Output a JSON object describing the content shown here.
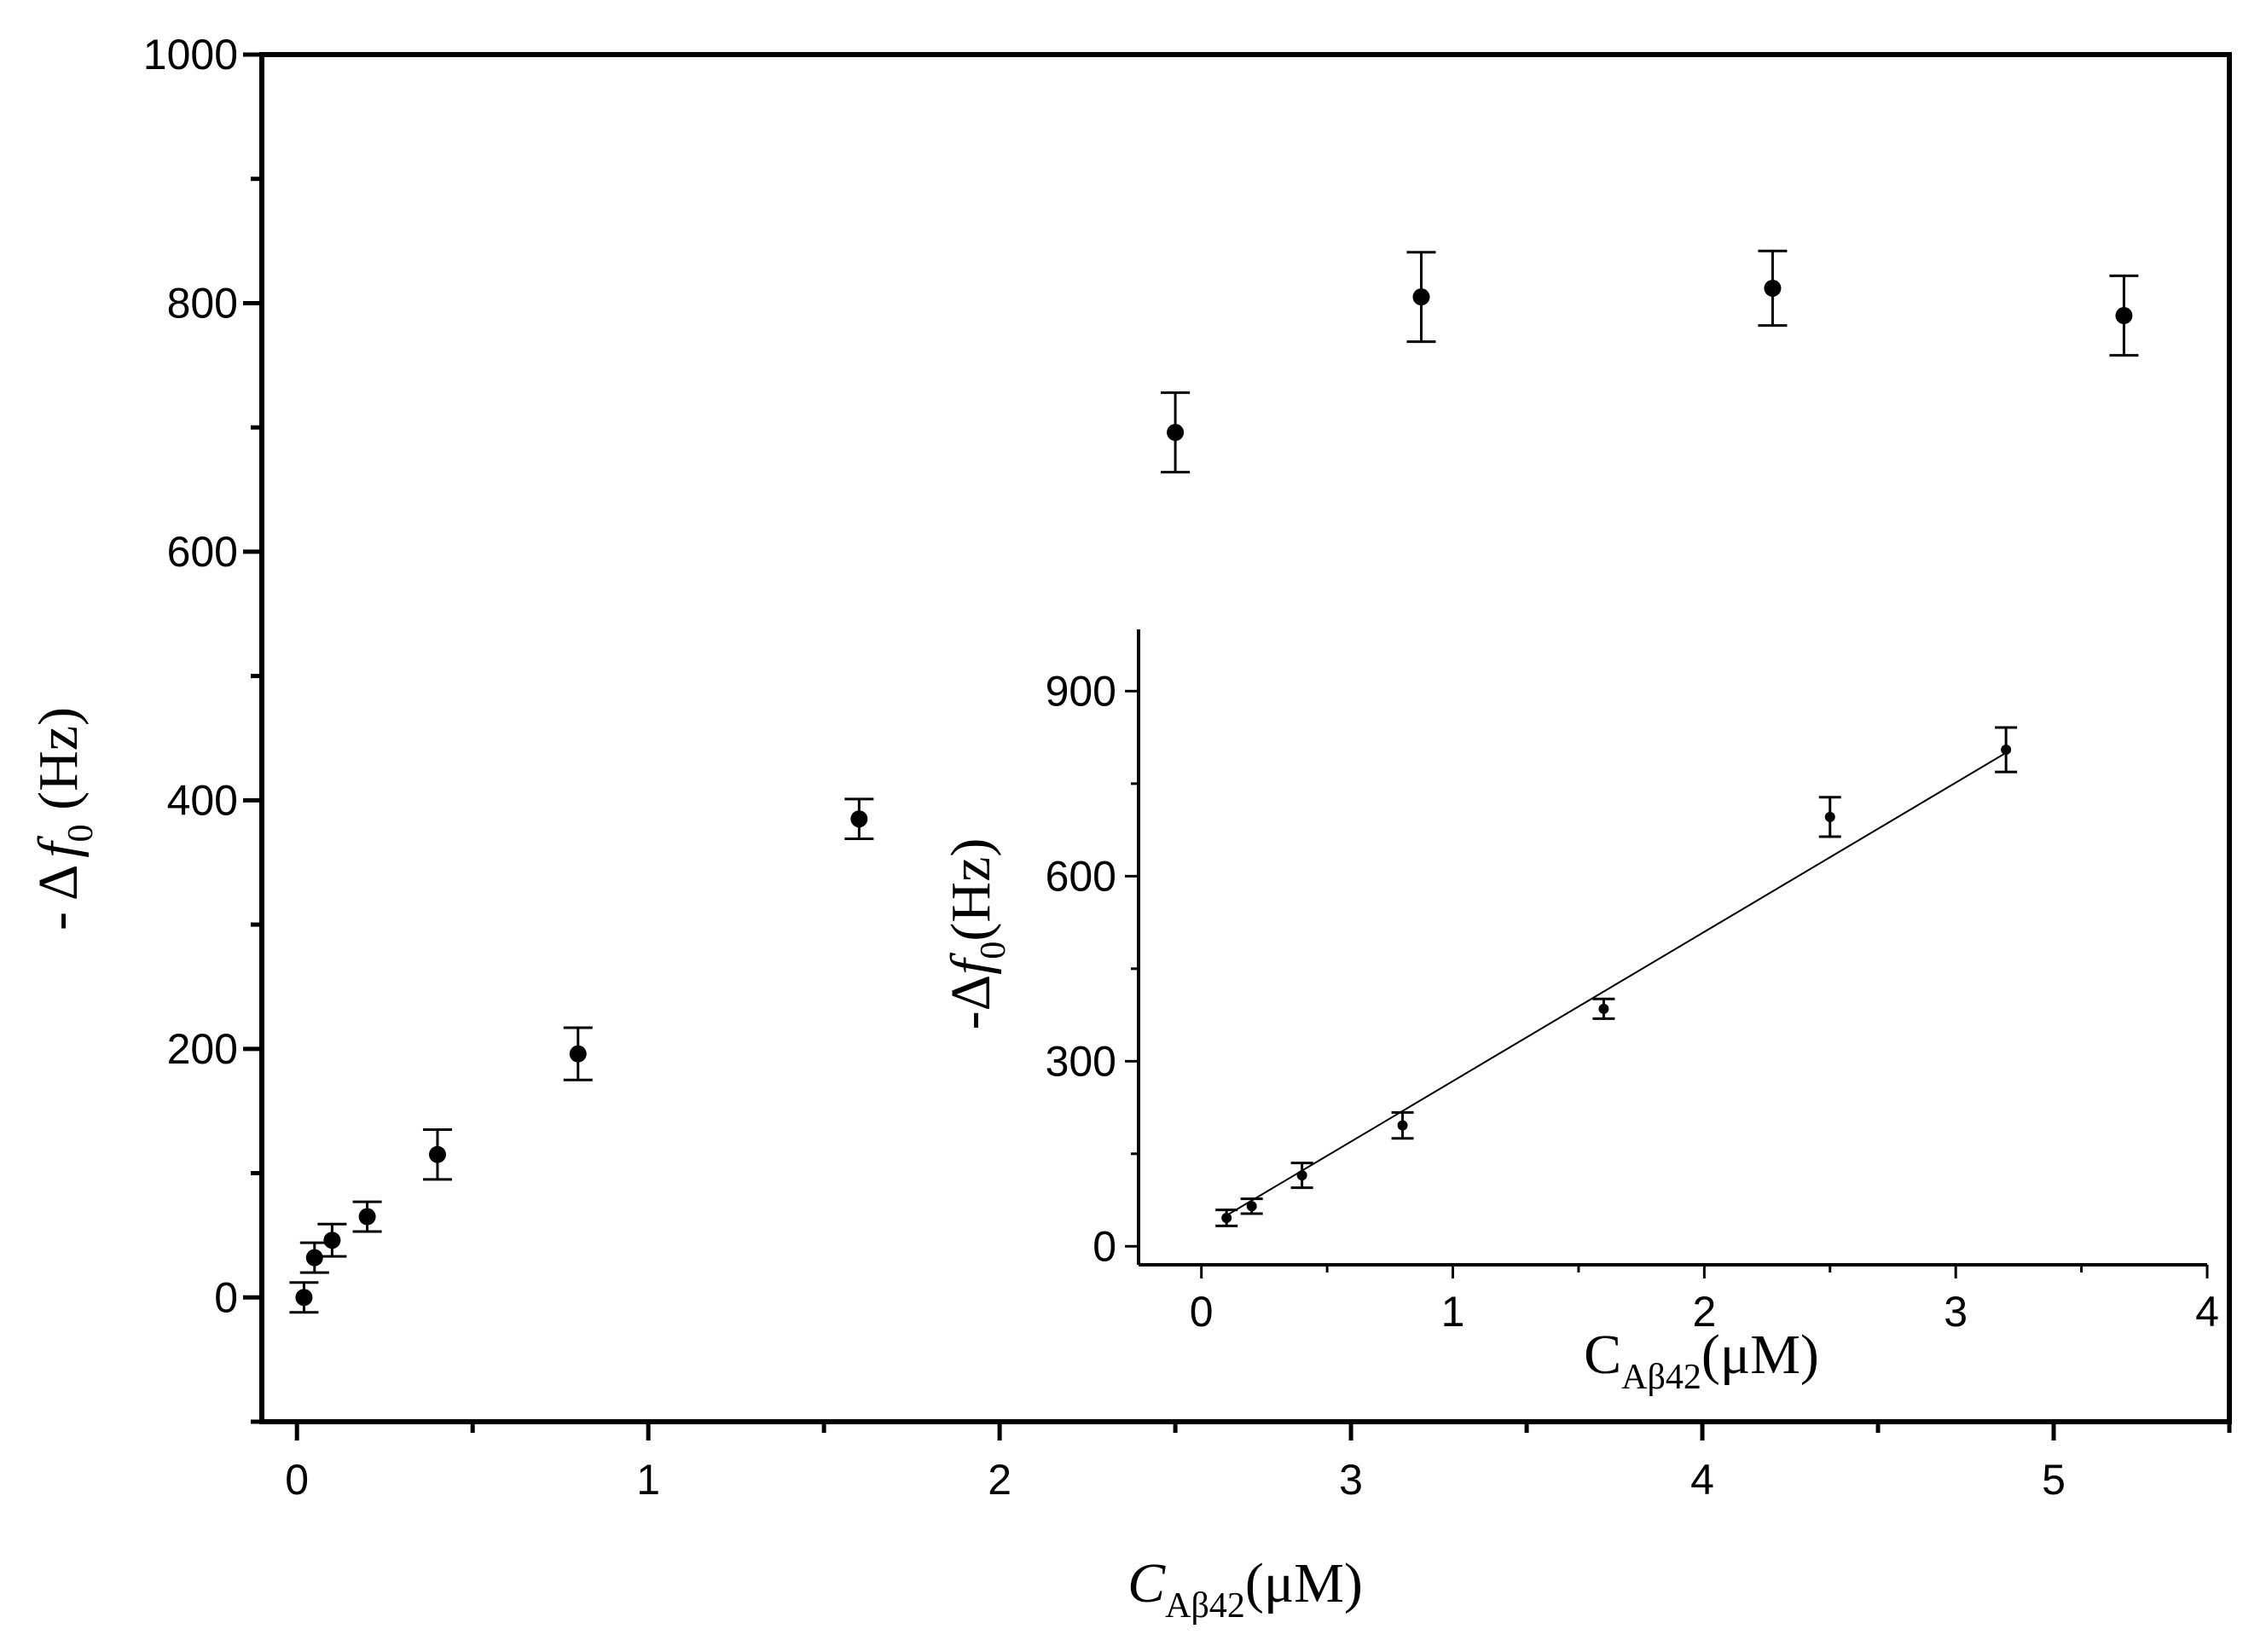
{
  "chart_data": [
    {
      "type": "scatter",
      "role": "main",
      "xlim": [
        -0.1,
        5.5
      ],
      "ylim": [
        -100,
        1000
      ],
      "xticks": [
        0,
        1,
        2,
        3,
        4,
        5
      ],
      "yticks": [
        0,
        200,
        400,
        600,
        800,
        1000
      ],
      "xlabel": {
        "prefix": "C",
        "sub": "Aβ42",
        "suffix": "(μM)"
      },
      "ylabel": {
        "prefix": "- Δ",
        "sym": "f",
        "sub": "0",
        "suffix": " (Hz)"
      },
      "series": [
        {
          "x": [
            0.02,
            0.05,
            0.1,
            0.2,
            0.4,
            0.8,
            1.6,
            2.5,
            3.2,
            4.2,
            5.2
          ],
          "y": [
            0,
            32,
            46,
            65,
            115,
            196,
            385,
            696,
            805,
            812,
            790
          ],
          "err": [
            12,
            12,
            13,
            12,
            20,
            21,
            16,
            32,
            36,
            30,
            32
          ]
        }
      ],
      "colors": {
        "marker": "#000000",
        "axis": "#000000"
      }
    },
    {
      "type": "scatter",
      "role": "inset",
      "xlim": [
        -0.25,
        4
      ],
      "ylim": [
        -30,
        1000
      ],
      "xticks": [
        0,
        1,
        2,
        3,
        4
      ],
      "yticks": [
        0,
        300,
        600,
        900
      ],
      "xlabel": {
        "prefix": "C",
        "sub": "Aβ42",
        "suffix": "(μM)"
      },
      "ylabel": {
        "prefix": "-Δ",
        "sym": "f",
        "sub": "0",
        "suffix": "(Hz)"
      },
      "series": [
        {
          "x": [
            0.1,
            0.2,
            0.4,
            0.8,
            1.6,
            2.5,
            3.2
          ],
          "y": [
            46,
            65,
            115,
            196,
            385,
            696,
            805
          ],
          "err": [
            13,
            12,
            20,
            21,
            16,
            32,
            36
          ]
        }
      ],
      "fit": {
        "x": [
          0.1,
          3.2
        ],
        "y": [
          50,
          800
        ]
      },
      "colors": {
        "marker": "#000000",
        "axis": "#000000"
      }
    }
  ]
}
